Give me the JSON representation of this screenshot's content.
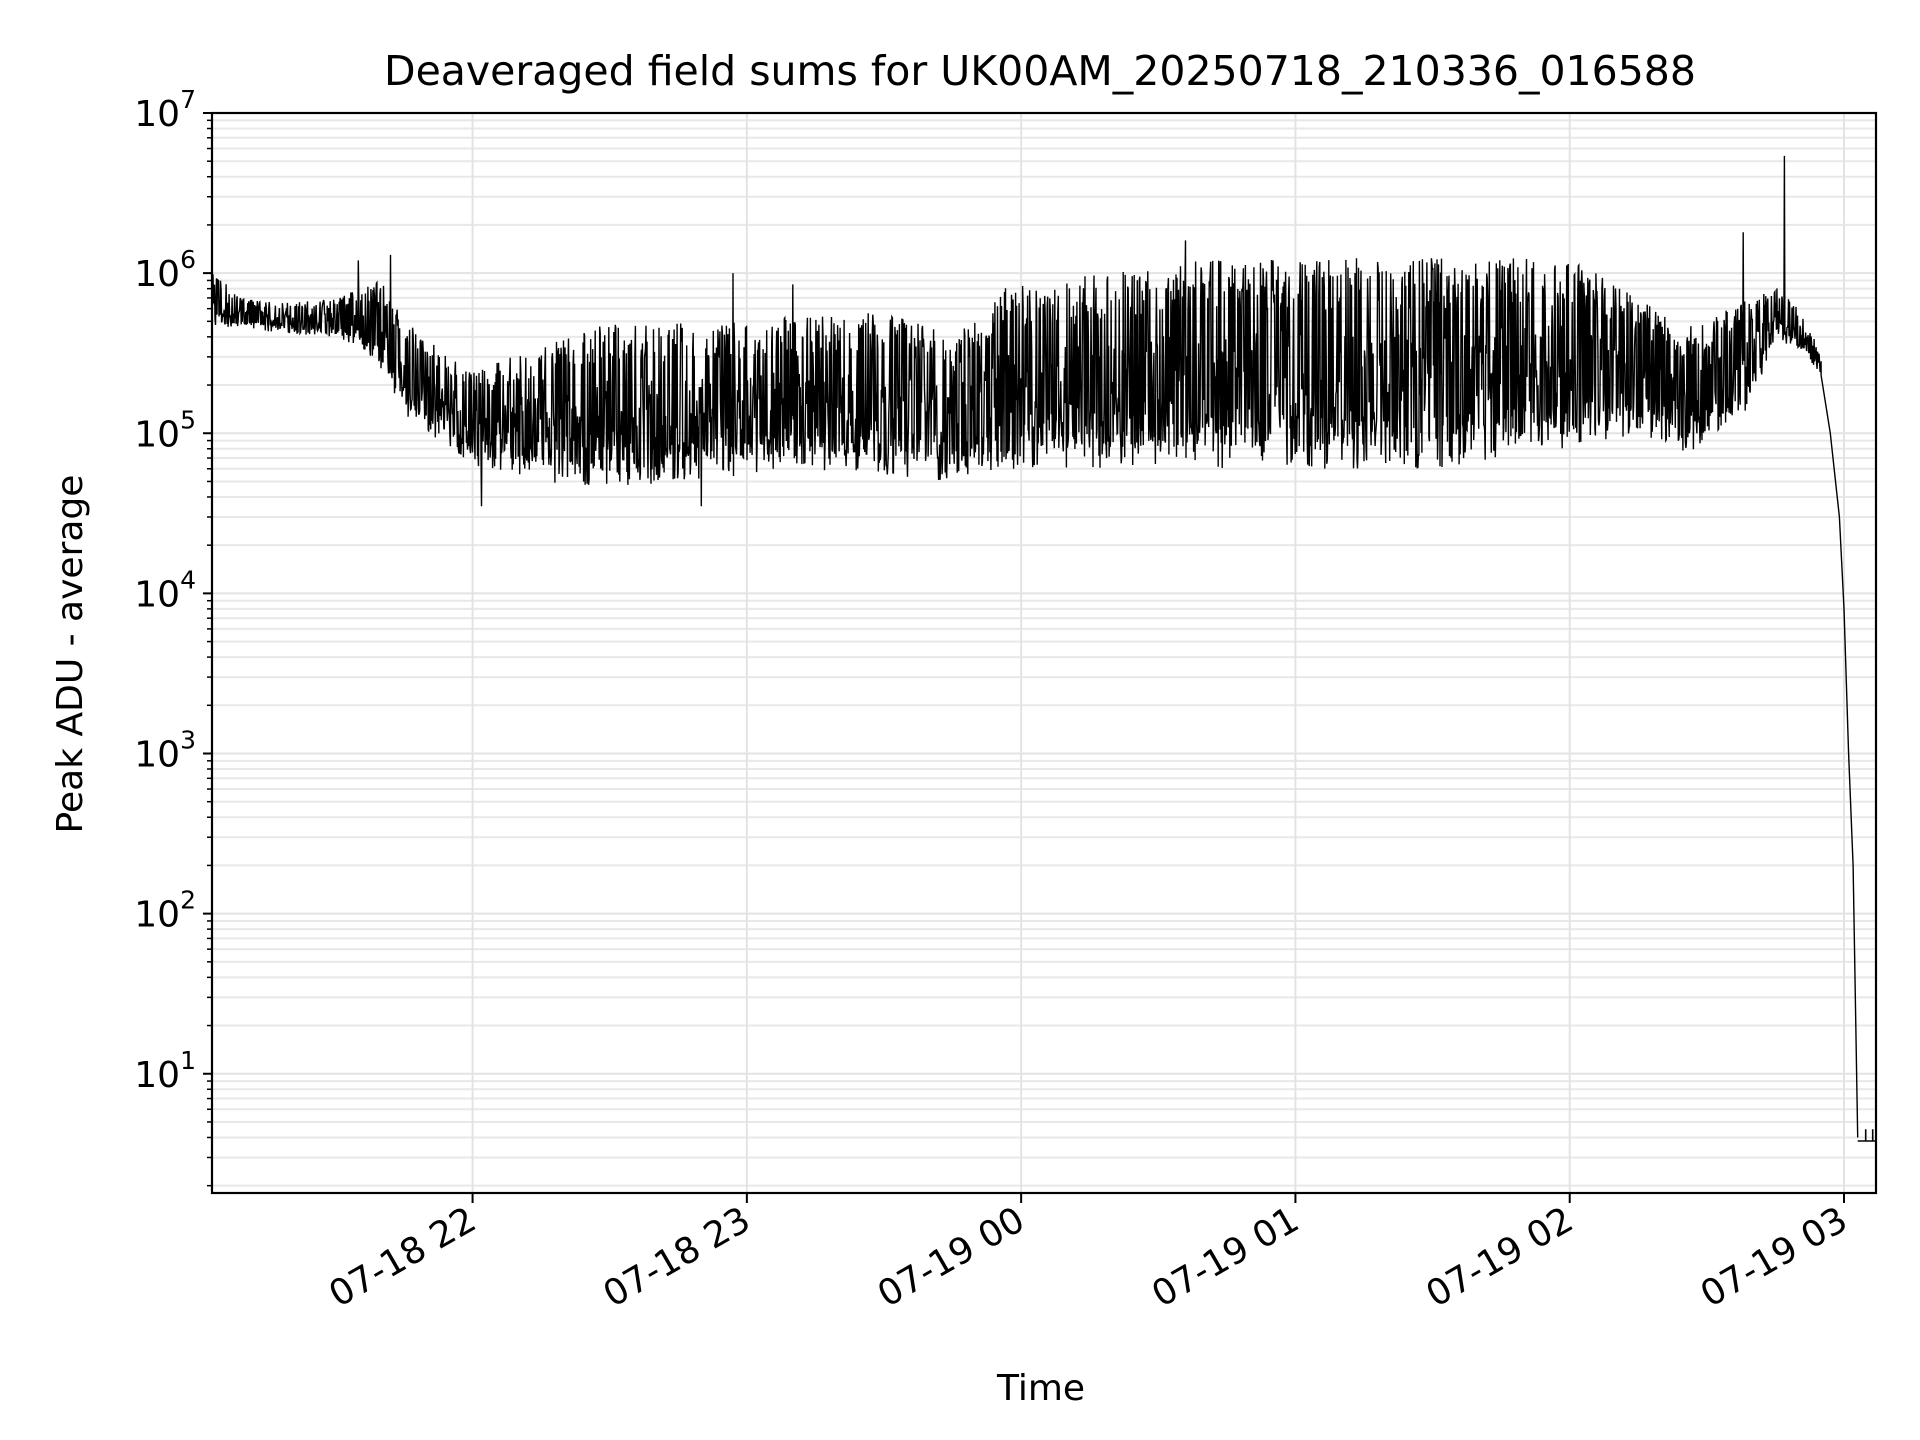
{
  "chart_data": {
    "type": "line",
    "title": "Deaveraged field sums for UK00AM_20250718_210336_016588",
    "xlabel": "Time",
    "ylabel": "Peak ADU - average",
    "yscale": "log",
    "ylim": [
      1.8,
      10000000
    ],
    "xlim": [
      "2025-07-18 21:03",
      "2025-07-19 03:07"
    ],
    "grid": true,
    "line_color": "#000000",
    "x_ticks": [
      {
        "t": "2025-07-18 22:00",
        "label": "07-18 22"
      },
      {
        "t": "2025-07-18 23:00",
        "label": "07-18 23"
      },
      {
        "t": "2025-07-19 00:00",
        "label": "07-19 00"
      },
      {
        "t": "2025-07-19 01:00",
        "label": "07-19 01"
      },
      {
        "t": "2025-07-19 02:00",
        "label": "07-19 02"
      },
      {
        "t": "2025-07-19 03:00",
        "label": "07-19 03"
      }
    ],
    "y_ticks": [
      {
        "value": 10,
        "base": "10",
        "exp": "1"
      },
      {
        "value": 100,
        "base": "10",
        "exp": "2"
      },
      {
        "value": 1000,
        "base": "10",
        "exp": "3"
      },
      {
        "value": 10000,
        "base": "10",
        "exp": "4"
      },
      {
        "value": 100000,
        "base": "10",
        "exp": "5"
      },
      {
        "value": 1000000,
        "base": "10",
        "exp": "6"
      },
      {
        "value": 10000000,
        "base": "10",
        "exp": "7"
      }
    ],
    "series": [
      {
        "envelope": [
          {
            "t": "2025-07-18 21:03",
            "low": 450000,
            "high": 1000000
          },
          {
            "t": "2025-07-18 21:10",
            "low": 450000,
            "high": 700000
          },
          {
            "t": "2025-07-18 21:20",
            "low": 420000,
            "high": 650000
          },
          {
            "t": "2025-07-18 21:30",
            "low": 400000,
            "high": 700000
          },
          {
            "t": "2025-07-18 21:35",
            "low": 350000,
            "high": 800000
          },
          {
            "t": "2025-07-18 21:40",
            "low": 250000,
            "high": 900000
          },
          {
            "t": "2025-07-18 21:45",
            "low": 130000,
            "high": 500000
          },
          {
            "t": "2025-07-18 21:50",
            "low": 100000,
            "high": 400000
          },
          {
            "t": "2025-07-18 22:00",
            "low": 60000,
            "high": 250000
          },
          {
            "t": "2025-07-18 22:15",
            "low": 50000,
            "high": 350000
          },
          {
            "t": "2025-07-18 22:30",
            "low": 45000,
            "high": 500000
          },
          {
            "t": "2025-07-18 23:00",
            "low": 55000,
            "high": 500000
          },
          {
            "t": "2025-07-18 23:30",
            "low": 55000,
            "high": 600000
          },
          {
            "t": "2025-07-18 23:45",
            "low": 50000,
            "high": 400000
          },
          {
            "t": "2025-07-18 23:55",
            "low": 60000,
            "high": 800000
          },
          {
            "t": "2025-07-19 00:15",
            "low": 60000,
            "high": 1000000
          },
          {
            "t": "2025-07-19 00:30",
            "low": 60000,
            "high": 1200000
          },
          {
            "t": "2025-07-19 01:00",
            "low": 60000,
            "high": 1250000
          },
          {
            "t": "2025-07-19 01:30",
            "low": 60000,
            "high": 1250000
          },
          {
            "t": "2025-07-19 02:00",
            "low": 80000,
            "high": 1250000
          },
          {
            "t": "2025-07-19 02:15",
            "low": 100000,
            "high": 700000
          },
          {
            "t": "2025-07-19 02:25",
            "low": 70000,
            "high": 450000
          },
          {
            "t": "2025-07-19 02:40",
            "low": 150000,
            "high": 700000
          },
          {
            "t": "2025-07-19 02:45",
            "low": 400000,
            "high": 900000
          },
          {
            "t": "2025-07-19 02:52",
            "low": 300000,
            "high": 500000
          },
          {
            "t": "2025-07-19 02:55",
            "low": 230000,
            "high": 300000
          }
        ],
        "decay": [
          {
            "t": "2025-07-19 02:55",
            "value": 230000
          },
          {
            "t": "2025-07-19 02:57",
            "value": 100000
          },
          {
            "t": "2025-07-19 02:59",
            "value": 30000
          },
          {
            "t": "2025-07-19 03:00",
            "value": 8000
          },
          {
            "t": "2025-07-19 03:01",
            "value": 1000
          },
          {
            "t": "2025-07-19 03:02",
            "value": 200
          },
          {
            "t": "2025-07-19 03:03",
            "value": 4
          }
        ],
        "spikes": [
          {
            "t": "2025-07-19 02:47",
            "value": 5400000
          },
          {
            "t": "2025-07-19 02:38",
            "value": 1800000
          },
          {
            "t": "2025-07-19 00:36",
            "value": 1600000
          },
          {
            "t": "2025-07-18 21:35",
            "value": 1200000
          },
          {
            "t": "2025-07-18 21:42",
            "value": 1300000
          },
          {
            "t": "2025-07-18 22:57",
            "value": 1000000
          },
          {
            "t": "2025-07-18 23:10",
            "value": 850000
          },
          {
            "t": "2025-07-18 22:50",
            "value": 35000
          },
          {
            "t": "2025-07-18 22:02",
            "value": 35000
          }
        ],
        "floor": {
          "t_start": "2025-07-19 03:03",
          "t_end": "2025-07-19 03:07",
          "value": 3.8,
          "tick_top": 4.5
        }
      }
    ]
  }
}
